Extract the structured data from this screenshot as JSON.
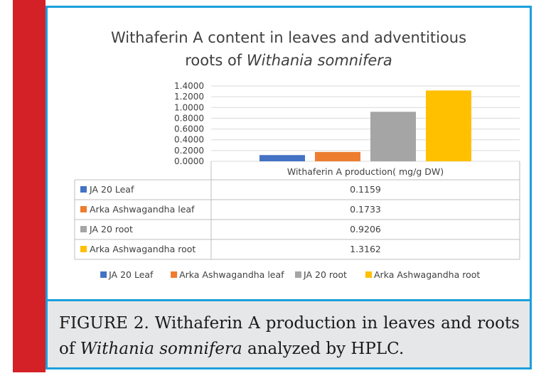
{
  "chart_data": {
    "type": "bar",
    "title_part1": "Withaferin A content in leaves and adventitious",
    "title_part2": "roots of ",
    "title_italic": "Withania somnifera",
    "category": "Withaferin A production( mg/g DW)",
    "ylim": [
      0,
      1.4
    ],
    "yticks": [
      "0.0000",
      "0.2000",
      "0.4000",
      "0.6000",
      "0.8000",
      "1.0000",
      "1.2000",
      "1.4000"
    ],
    "grid": true,
    "legend_position": "bottom",
    "series": [
      {
        "name": "JA 20 Leaf",
        "value": 0.1159,
        "label": "0.1159",
        "color": "#4472c4"
      },
      {
        "name": "Arka Ashwagandha leaf",
        "value": 0.1733,
        "label": "0.1733",
        "color": "#ed7d31"
      },
      {
        "name": "JA 20 root",
        "value": 0.9206,
        "label": "0.9206",
        "color": "#a5a5a5"
      },
      {
        "name": "Arka Ashwagandha root",
        "value": 1.3162,
        "label": "1.3162",
        "color": "#ffc000"
      }
    ]
  },
  "caption": {
    "text1": "FIGURE 2. Withaferin A production in leaves and roots of ",
    "italic": "Withania somnifera",
    "text2": " analyzed by HPLC."
  },
  "colors": {
    "frame": "#1aa0dc",
    "side_bar": "#d42128",
    "caption_bg": "#e6e7e8"
  }
}
